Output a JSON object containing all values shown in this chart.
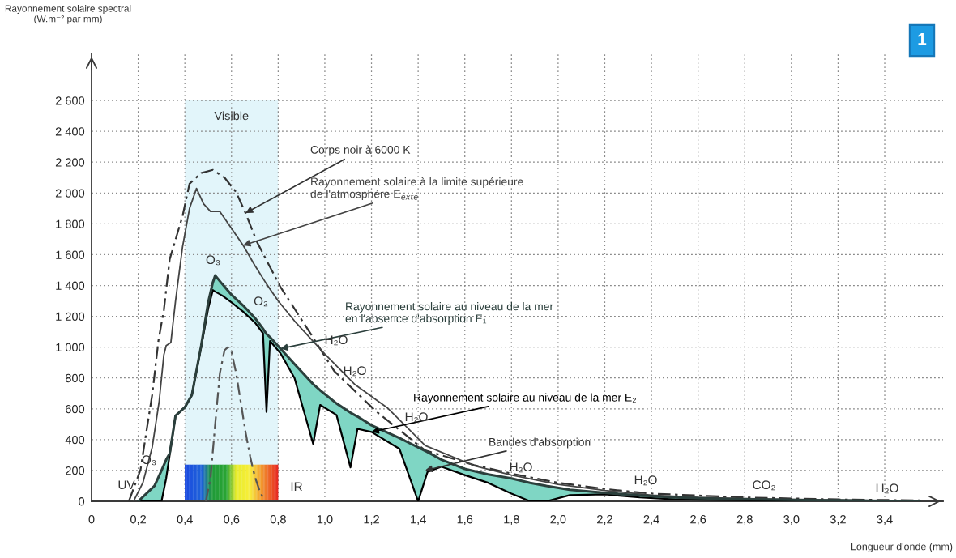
{
  "chart_data": {
    "type": "line",
    "xlabel": "Longueur d'onde (mm)",
    "ylabel": "Rayonnement solaire spectral\n(W.m⁻² par mm)",
    "xlim": [
      0,
      3.65
    ],
    "ylim": [
      0,
      2900
    ],
    "xticks": [
      0,
      {
        "value": 0.2,
        "label": "0,2"
      },
      {
        "value": 0.4,
        "label": "0,4"
      },
      {
        "value": 0.6,
        "label": "0,6"
      },
      {
        "value": 0.8,
        "label": "0,8"
      },
      {
        "value": 1.0,
        "label": "1,0"
      },
      {
        "value": 1.2,
        "label": "1,2"
      },
      {
        "value": 1.4,
        "label": "1,4"
      },
      {
        "value": 1.6,
        "label": "1,6"
      },
      {
        "value": 1.8,
        "label": "1,8"
      },
      {
        "value": 2.0,
        "label": "2,0"
      },
      {
        "value": 2.2,
        "label": "2,2"
      },
      {
        "value": 2.4,
        "label": "2,4"
      },
      {
        "value": 2.6,
        "label": "2,6"
      },
      {
        "value": 2.8,
        "label": "2,8"
      },
      {
        "value": 3.0,
        "label": "3,0"
      },
      {
        "value": 3.2,
        "label": "3,2"
      },
      {
        "value": 3.4,
        "label": "3,4"
      }
    ],
    "yticks": [
      0,
      200,
      400,
      600,
      800,
      {
        "value": 1000,
        "label": "1 000"
      },
      {
        "value": 1200,
        "label": "1 200"
      },
      {
        "value": 1400,
        "label": "1 400"
      },
      {
        "value": 1600,
        "label": "1 600"
      },
      {
        "value": 1800,
        "label": "1 800"
      },
      {
        "value": 2000,
        "label": "2 000"
      },
      {
        "value": 2200,
        "label": "2 200"
      },
      {
        "value": 2400,
        "label": "2 400"
      },
      {
        "value": 2600,
        "label": "2 600"
      }
    ],
    "grid": true,
    "bands": [
      {
        "axis": "x",
        "from": 0.4,
        "to": 0.8,
        "label": "Visible",
        "color": "#e2f5fa"
      }
    ],
    "series": [
      {
        "name": "Corps noir à 6000 K",
        "color": "#333333",
        "line_style": "dashed",
        "x": [
          0.16,
          0.21,
          0.237,
          0.26,
          0.287,
          0.31,
          0.335,
          0.39,
          0.42,
          0.47,
          0.52,
          0.57,
          0.62,
          0.66,
          0.71,
          0.81,
          0.94,
          1.04,
          1.13,
          1.22,
          1.43,
          1.64,
          1.8,
          2.0,
          2.2,
          2.4,
          2.8,
          3.2,
          3.55
        ],
        "values": [
          0,
          205,
          470,
          690,
          1045,
          1240,
          1570,
          1850,
          2060,
          2130,
          2150,
          2100,
          2005,
          1870,
          1680,
          1390,
          1085,
          845,
          714,
          583,
          330,
          235,
          180,
          120,
          80,
          50,
          25,
          12,
          6
        ]
      },
      {
        "name": "Rayonnement solaire à la limite supérieure\nde l'atmosphère E$_{exte}$",
        "color": "#444444",
        "line_style": "solid",
        "x": [
          0.18,
          0.22,
          0.26,
          0.29,
          0.31,
          0.32,
          0.34,
          0.36,
          0.39,
          0.42,
          0.45,
          0.48,
          0.51,
          0.55,
          0.6,
          0.65,
          0.7,
          0.75,
          0.8,
          0.87,
          1.0,
          1.13,
          1.27,
          1.43,
          1.64,
          1.8,
          2.0,
          2.2,
          2.4,
          2.6,
          2.8,
          3.0,
          3.2,
          3.4,
          3.55
        ],
        "values": [
          0,
          120,
          350,
          650,
          950,
          1010,
          1030,
          1300,
          1650,
          1900,
          2030,
          1930,
          1880,
          1880,
          1770,
          1660,
          1530,
          1410,
          1300,
          1170,
          955,
          756,
          604,
          362,
          231,
          170,
          110,
          70,
          40,
          25,
          18,
          12,
          8,
          5,
          3
        ]
      },
      {
        "name": "Rayonnement solaire au niveau de la mer\nen l'absence d'absorption E₁",
        "color": "#2b3f3c",
        "line_style": "solid",
        "x": [
          0.2,
          0.27,
          0.3,
          0.32,
          0.335,
          0.36,
          0.4,
          0.43,
          0.47,
          0.5,
          0.52,
          0.53,
          0.56,
          0.6,
          0.65,
          0.7,
          0.735,
          0.75,
          0.765,
          0.81,
          0.87,
          0.95,
          0.98,
          1.05,
          1.11,
          1.14,
          1.2,
          1.32,
          1.4,
          1.44,
          1.5,
          1.6,
          1.7,
          1.8,
          1.88,
          1.95,
          2.05,
          2.2,
          2.35,
          2.5,
          2.7,
          3.0,
          3.2,
          3.4,
          3.55
        ],
        "values": [
          0,
          100,
          200,
          270,
          310,
          555,
          610,
          690,
          1010,
          1290,
          1420,
          1465,
          1410,
          1340,
          1270,
          1190,
          1120,
          1085,
          1065,
          990,
          890,
          760,
          720,
          635,
          575,
          550,
          493,
          410,
          350,
          320,
          270,
          210,
          175,
          148,
          120,
          100,
          75,
          55,
          38,
          25,
          16,
          9,
          6,
          3,
          2
        ]
      },
      {
        "name": "Rayonnement solaire au niveau de la mer E₂",
        "color": "#000000",
        "line_style": "solid",
        "x": [
          0.2,
          0.27,
          0.3,
          0.32,
          0.335,
          0.36,
          0.4,
          0.43,
          0.47,
          0.5,
          0.52,
          0.53,
          0.56,
          0.6,
          0.65,
          0.7,
          0.735,
          0.75,
          0.765,
          0.81,
          0.87,
          0.95,
          0.98,
          1.05,
          1.11,
          1.14,
          1.2,
          1.32,
          1.4,
          1.44,
          1.5,
          1.6,
          1.7,
          1.8,
          1.88,
          1.95,
          2.05,
          2.2,
          2.35,
          2.5,
          2.7,
          3.0,
          3.2,
          3.4,
          3.55
        ],
        "values": [
          0,
          0,
          0,
          150,
          300,
          555,
          610,
          690,
          1000,
          1250,
          1370,
          1360,
          1335,
          1290,
          1230,
          1160,
          1090,
          580,
          1040,
          960,
          800,
          372,
          625,
          560,
          220,
          470,
          450,
          340,
          0,
          190,
          225,
          170,
          120,
          50,
          0,
          0,
          40,
          45,
          25,
          12,
          8,
          5,
          3,
          0,
          0
        ],
        "lower": [
          0,
          0,
          0,
          150,
          300,
          555,
          610,
          690,
          1000,
          1250,
          1370,
          1360,
          1335,
          1290,
          1230,
          1160,
          1090,
          580,
          1040,
          960,
          800,
          372,
          625,
          560,
          220,
          470,
          450,
          340,
          0,
          190,
          225,
          170,
          120,
          50,
          0,
          0,
          40,
          45,
          25,
          12,
          8,
          5,
          3,
          0,
          0
        ],
        "upper": [
          0,
          100,
          200,
          270,
          310,
          555,
          610,
          690,
          1010,
          1290,
          1420,
          1465,
          1410,
          1340,
          1270,
          1190,
          1120,
          1085,
          1065,
          990,
          890,
          760,
          720,
          635,
          575,
          550,
          493,
          410,
          350,
          320,
          270,
          210,
          175,
          148,
          120,
          100,
          75,
          55,
          38,
          25,
          16,
          9,
          6,
          3,
          2
        ]
      },
      {
        "color": "#555555",
        "line_style": "dashed",
        "x": [
          0.49,
          0.51,
          0.53,
          0.55,
          0.57,
          0.585,
          0.6,
          0.62,
          0.64,
          0.66,
          0.68,
          0.7,
          0.72,
          0.74
        ],
        "values": [
          0,
          150,
          500,
          830,
          980,
          1000,
          970,
          830,
          640,
          450,
          290,
          160,
          70,
          10
        ]
      }
    ],
    "annotations": [
      "O₃",
      "O₂",
      "H₂O",
      "H₂O",
      "H₂O",
      "H₂O",
      "H₂O",
      "CO₂",
      "H₂O",
      "O₃",
      "UV",
      "IR",
      {
        "text": "Bandes d'absorption",
        "x": 1.43,
        "y": 200
      },
      "1"
    ]
  }
}
